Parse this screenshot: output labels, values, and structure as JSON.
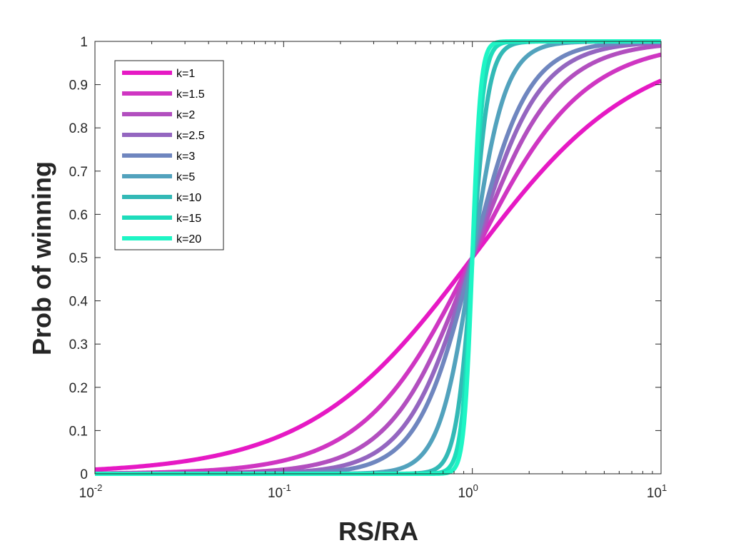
{
  "chart_data": {
    "type": "line",
    "title": "",
    "xlabel": "RS/RA",
    "ylabel": "Prob of winning",
    "xscale": "log",
    "xlim": [
      0.01,
      10
    ],
    "ylim": [
      0,
      1
    ],
    "grid": false,
    "legend_position": "top-left",
    "x_ticks": [
      {
        "base": "10",
        "exp": "-2"
      },
      {
        "base": "10",
        "exp": "-1"
      },
      {
        "base": "10",
        "exp": "0"
      },
      {
        "base": "10",
        "exp": "1"
      }
    ],
    "y_ticks": [
      "0",
      "0.1",
      "0.2",
      "0.3",
      "0.4",
      "0.5",
      "0.6",
      "0.7",
      "0.8",
      "0.9",
      "1"
    ],
    "series": [
      {
        "name": "k=1",
        "k": 1,
        "color": "#e619c4"
      },
      {
        "name": "k=1.5",
        "k": 1.5,
        "color": "#cf36c2"
      },
      {
        "name": "k=2",
        "k": 2,
        "color": "#b24fbf"
      },
      {
        "name": "k=2.5",
        "k": 2.5,
        "color": "#9466c0"
      },
      {
        "name": "k=3",
        "k": 3,
        "color": "#6f86bf"
      },
      {
        "name": "k=5",
        "k": 5,
        "color": "#52a2bd"
      },
      {
        "name": "k=10",
        "k": 10,
        "color": "#33b9b6"
      },
      {
        "name": "k=15",
        "k": 15,
        "color": "#1edcbb"
      },
      {
        "name": "k=20",
        "k": 20,
        "color": "#1ef5c5"
      }
    ],
    "formula": "y = x^k / (1 + x^k)"
  }
}
